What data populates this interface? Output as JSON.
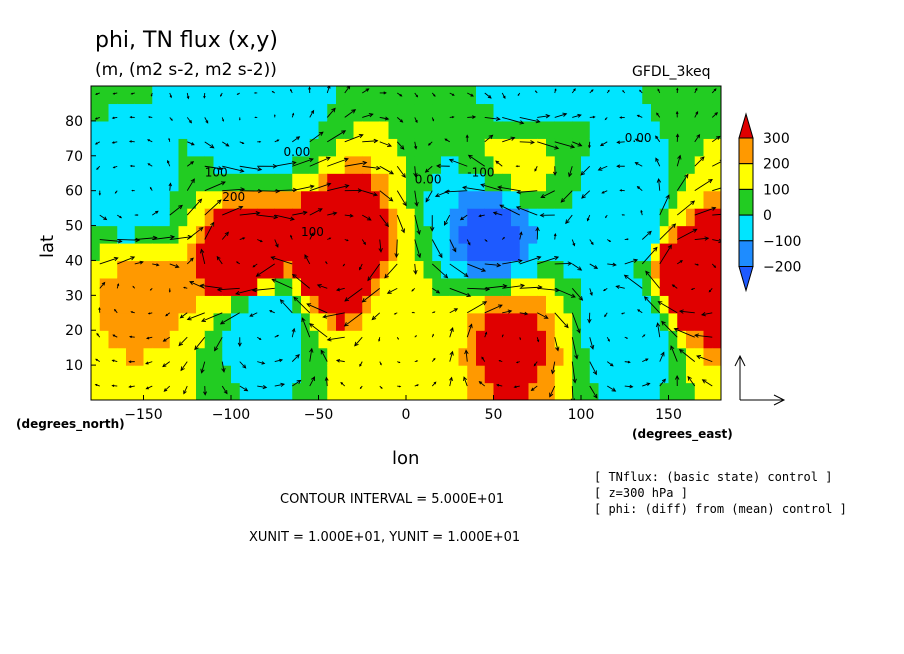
{
  "chart_data": {
    "type": "heatmap",
    "title": "phi, TN flux (x,y)",
    "subtitle": "(m, (m2 s-2, m2 s-2))",
    "model_label": "GFDL_3keq",
    "xlabel": "lon",
    "ylabel": "lat",
    "x_unit_label": "(degrees_east)",
    "y_unit_label": "(degrees_north)",
    "xlim": [
      -180,
      180
    ],
    "ylim": [
      0,
      90
    ],
    "x_ticks": [
      -150,
      -100,
      -50,
      0,
      50,
      100,
      150
    ],
    "x_tick_labels": [
      "−150",
      "−100",
      "−50",
      "0",
      "50",
      "100",
      "150"
    ],
    "y_ticks": [
      10,
      20,
      30,
      40,
      50,
      60,
      70,
      80
    ],
    "y_tick_labels": [
      "10",
      "20",
      "30",
      "40",
      "50",
      "60",
      "70",
      "80"
    ],
    "colorbar": {
      "levels": [
        "300",
        "200",
        "100",
        "0",
        "−100",
        "−200"
      ],
      "colors": [
        "#e00000",
        "#ff9900",
        "#ffff00",
        "#22cc22",
        "#00e5ff",
        "#1e8cff",
        "#1e5aff"
      ]
    },
    "contour_labels": [
      {
        "text": "0.00",
        "lon": -70,
        "lat": 70
      },
      {
        "text": "0.00",
        "lon": 125,
        "lat": 74
      },
      {
        "text": "100",
        "lon": -115,
        "lat": 64
      },
      {
        "text": "200",
        "lon": -105,
        "lat": 57
      },
      {
        "text": "100",
        "lon": -60,
        "lat": 47
      },
      {
        "text": "0.00",
        "lon": 5,
        "lat": 62
      },
      {
        "text": "-100",
        "lon": 35,
        "lat": 64
      }
    ],
    "centers": [
      {
        "lon": -90,
        "lat": 40,
        "value": 320
      },
      {
        "lon": -40,
        "lat": 40,
        "value": 320
      },
      {
        "lon": 50,
        "lat": 48,
        "value": -220
      },
      {
        "lon": 160,
        "lat": 35,
        "value": 320
      },
      {
        "lon": -80,
        "lat": 23,
        "value": -130
      },
      {
        "lon": 0,
        "lat": 20,
        "value": 60
      },
      {
        "lon": 60,
        "lat": 18,
        "value": 220
      },
      {
        "lon": 125,
        "lat": 50,
        "value": -140
      },
      {
        "lon": 130,
        "lat": 22,
        "value": -120
      },
      {
        "lon": -155,
        "lat": 55,
        "value": -90
      },
      {
        "lon": -85,
        "lat": 80,
        "value": -130
      },
      {
        "lon": 70,
        "lat": 85,
        "value": -110
      },
      {
        "lon": 65,
        "lat": 70,
        "value": 90
      },
      {
        "lon": -150,
        "lat": 35,
        "value": 180
      }
    ],
    "contour_interval_text": "CONTOUR INTERVAL = 5.000E+01",
    "unit_scale_text": "XUNIT = 1.000E+01, YUNIT = 1.000E+01",
    "notes": [
      "[ TNflux: (basic state) control ]",
      "[ z=300 hPa ]",
      "[ phi: (diff) from (mean) control ]"
    ]
  }
}
